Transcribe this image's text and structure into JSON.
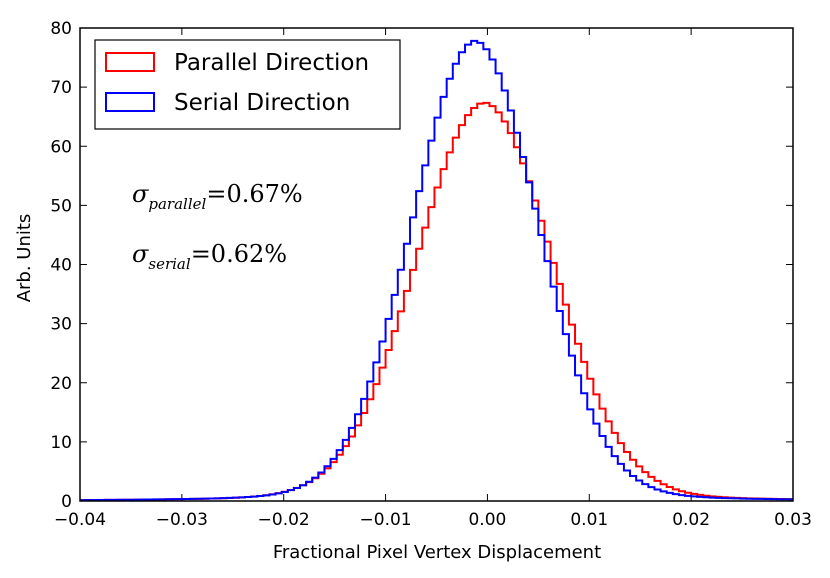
{
  "chart_data": {
    "type": "histogram-step",
    "title": "",
    "xlabel": "Fractional Pixel Vertex Displacement",
    "ylabel": "Arb. Units",
    "xlim": [
      -0.04,
      0.03
    ],
    "ylim": [
      0,
      80
    ],
    "xticks": [
      -0.04,
      -0.03,
      -0.02,
      -0.01,
      0.0,
      0.01,
      0.02,
      0.03
    ],
    "xtick_labels": [
      "−0.04",
      "−0.03",
      "−0.02",
      "−0.01",
      "0.00",
      "0.01",
      "0.02",
      "0.03"
    ],
    "yticks": [
      0,
      10,
      20,
      30,
      40,
      50,
      60,
      70,
      80
    ],
    "ytick_labels": [
      "0",
      "10",
      "20",
      "30",
      "40",
      "50",
      "60",
      "70",
      "80"
    ],
    "legend_position": "top-left",
    "bin_width": 0.0006,
    "series": [
      {
        "name": "Parallel Direction",
        "color": "#ff0000",
        "sigma": 0.0067,
        "peak": 64.5,
        "center": -0.0003
      },
      {
        "name": "Serial Direction",
        "color": "#0000ff",
        "sigma": 0.0062,
        "peak": 74.5,
        "center": -0.0012
      }
    ],
    "annotations": [
      {
        "symbol": "σ",
        "subscript": "parallel",
        "equals": "=",
        "value": "0.67%"
      },
      {
        "symbol": "σ",
        "subscript": "serial",
        "equals": "=",
        "value": "0.62%"
      }
    ]
  }
}
